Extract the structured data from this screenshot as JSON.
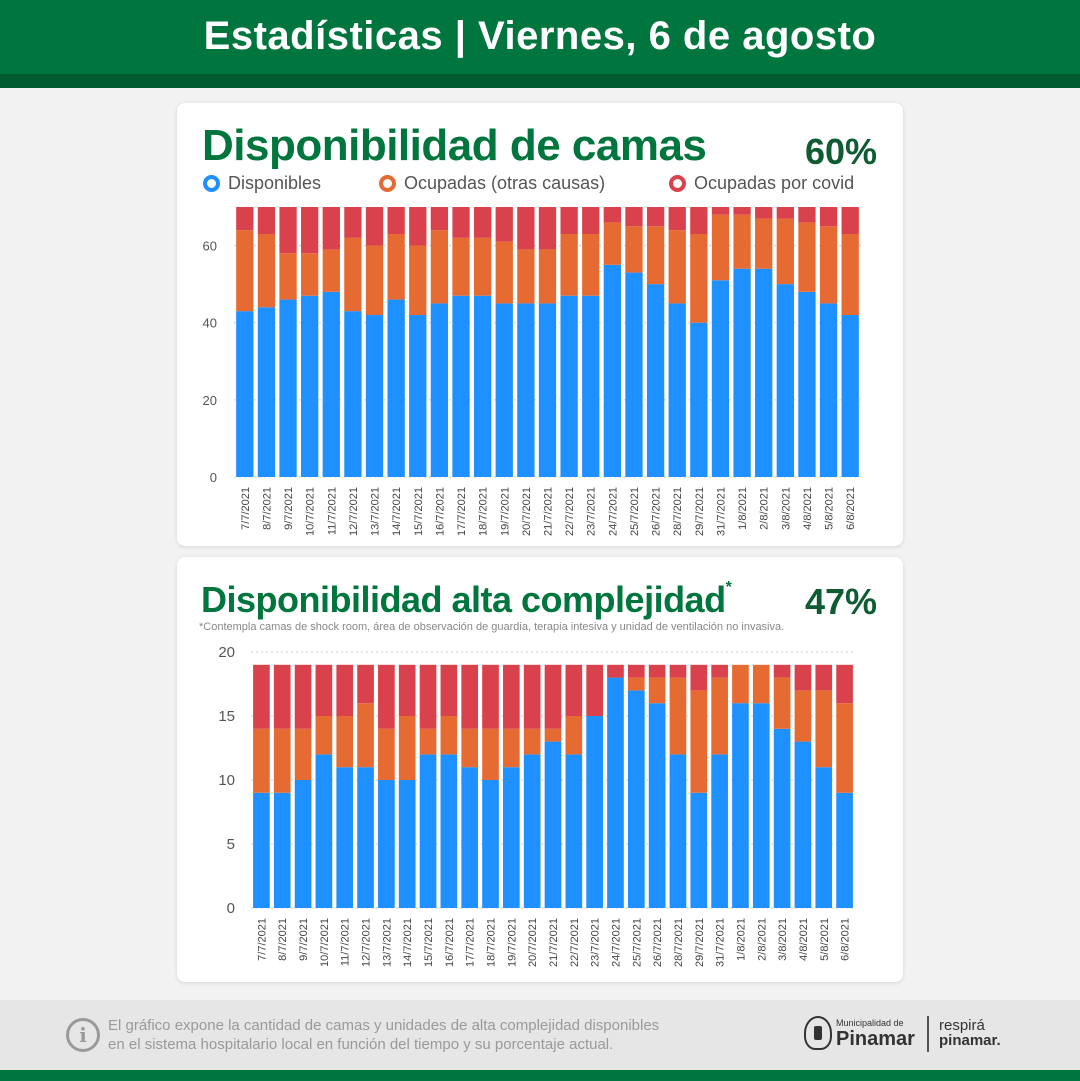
{
  "header": {
    "title": "Estadísticas | Viernes, 6 de agosto"
  },
  "colors": {
    "disponibles": "#1e90ff",
    "otras": "#e66b33",
    "covid": "#d9424c",
    "brand_green": "#00753e"
  },
  "card1": {
    "title": "Disponibilidad de camas",
    "percent": "60%",
    "legend": [
      {
        "label": "Disponibles",
        "color": "#1e90ff"
      },
      {
        "label": "Ocupadas (otras causas)",
        "color": "#e66b33"
      },
      {
        "label": "Ocupadas por covid",
        "color": "#d9424c"
      }
    ]
  },
  "card2": {
    "title": "Disponibilidad alta complejidad",
    "asterisk": "*",
    "percent": "47%",
    "note": "*Contempla camas de shock room, área de observación de guardia, terapia intesiva y unidad de ventilación no invasiva."
  },
  "chart_data": [
    {
      "type": "bar",
      "stacked": true,
      "title": "Disponibilidad de camas",
      "categories": [
        "7/7/2021",
        "8/7/2021",
        "9/7/2021",
        "10/7/2021",
        "11/7/2021",
        "12/7/2021",
        "13/7/2021",
        "14/7/2021",
        "15/7/2021",
        "16/7/2021",
        "17/7/2021",
        "18/7/2021",
        "19/7/2021",
        "20/7/2021",
        "21/7/2021",
        "22/7/2021",
        "23/7/2021",
        "24/7/2021",
        "25/7/2021",
        "26/7/2021",
        "28/7/2021",
        "29/7/2021",
        "31/7/2021",
        "1/8/2021",
        "2/8/2021",
        "3/8/2021",
        "4/8/2021",
        "5/8/2021",
        "6/8/2021"
      ],
      "series": [
        {
          "name": "Disponibles",
          "color": "#1e90ff",
          "values": [
            43,
            44,
            46,
            47,
            48,
            43,
            42,
            46,
            42,
            45,
            47,
            47,
            45,
            45,
            45,
            47,
            47,
            55,
            53,
            50,
            45,
            40,
            51,
            54,
            54,
            50,
            48,
            45,
            42
          ]
        },
        {
          "name": "Ocupadas (otras causas)",
          "color": "#e66b33",
          "values": [
            21,
            19,
            12,
            11,
            11,
            19,
            18,
            17,
            18,
            19,
            15,
            15,
            16,
            14,
            14,
            16,
            16,
            11,
            12,
            15,
            19,
            23,
            17,
            14,
            13,
            17,
            18,
            20,
            21
          ]
        },
        {
          "name": "Ocupadas por covid",
          "color": "#d9424c",
          "values": [
            6,
            7,
            12,
            12,
            11,
            8,
            10,
            7,
            10,
            6,
            8,
            8,
            9,
            11,
            11,
            7,
            7,
            4,
            5,
            5,
            6,
            7,
            2,
            2,
            3,
            3,
            4,
            5,
            7
          ]
        }
      ],
      "yticks": [
        0,
        20,
        40,
        60
      ],
      "ylim": [
        0,
        70
      ],
      "grid": true
    },
    {
      "type": "bar",
      "stacked": true,
      "title": "Disponibilidad alta complejidad",
      "categories": [
        "7/7/2021",
        "8/7/2021",
        "9/7/2021",
        "10/7/2021",
        "11/7/2021",
        "12/7/2021",
        "13/7/2021",
        "14/7/2021",
        "15/7/2021",
        "16/7/2021",
        "17/7/2021",
        "18/7/2021",
        "19/7/2021",
        "20/7/2021",
        "21/7/2021",
        "22/7/2021",
        "23/7/2021",
        "24/7/2021",
        "25/7/2021",
        "26/7/2021",
        "28/7/2021",
        "29/7/2021",
        "31/7/2021",
        "1/8/2021",
        "2/8/2021",
        "3/8/2021",
        "4/8/2021",
        "5/8/2021",
        "6/8/2021"
      ],
      "series": [
        {
          "name": "Disponibles",
          "color": "#1e90ff",
          "values": [
            9,
            9,
            10,
            12,
            11,
            11,
            10,
            10,
            12,
            12,
            11,
            10,
            11,
            12,
            13,
            12,
            15,
            18,
            17,
            16,
            12,
            9,
            12,
            16,
            16,
            14,
            13,
            11,
            9
          ]
        },
        {
          "name": "Ocupadas (otras causas)",
          "color": "#e66b33",
          "values": [
            5,
            5,
            4,
            3,
            4,
            5,
            4,
            5,
            2,
            3,
            3,
            4,
            3,
            2,
            1,
            3,
            0,
            0,
            1,
            2,
            6,
            8,
            6,
            3,
            3,
            4,
            4,
            6,
            7
          ]
        },
        {
          "name": "Ocupadas por covid",
          "color": "#d9424c",
          "values": [
            5,
            5,
            5,
            4,
            4,
            3,
            5,
            4,
            5,
            4,
            5,
            5,
            5,
            5,
            5,
            4,
            4,
            1,
            1,
            1,
            1,
            2,
            1,
            0,
            0,
            1,
            2,
            2,
            3
          ]
        }
      ],
      "yticks": [
        0,
        5,
        10,
        15,
        20
      ],
      "ylim": [
        0,
        20
      ],
      "grid": true
    }
  ],
  "footer": {
    "info_icon": "info-icon",
    "text_line1": "El gráfico expone la cantidad de camas y unidades de alta complejidad disponibles",
    "text_line2": "en el sistema hospitalario local en función del tiempo y su porcentaje actual.",
    "logo_small": "Municipalidad de",
    "logo_big": "Pinamar",
    "respira_line1": "respirá",
    "respira_line2": "pinamar."
  }
}
